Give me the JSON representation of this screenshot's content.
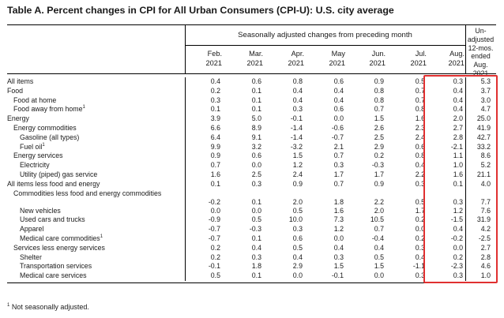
{
  "title": "Table A. Percent changes in CPI for All Urban Consumers (CPI-U): U.S. city average",
  "header": {
    "group_label": "Seasonally adjusted changes from preceding month",
    "months": [
      {
        "m": "Feb.",
        "y": "2021"
      },
      {
        "m": "Mar.",
        "y": "2021"
      },
      {
        "m": "Apr.",
        "y": "2021"
      },
      {
        "m": "May",
        "y": "2021"
      },
      {
        "m": "Jun.",
        "y": "2021"
      },
      {
        "m": "Jul.",
        "y": "2021"
      },
      {
        "m": "Aug.",
        "y": "2021"
      }
    ],
    "unadjusted_lines": [
      "Un-",
      "adjusted",
      "12-mos.",
      "ended",
      "Aug. 2021"
    ]
  },
  "rows": [
    {
      "label": "All items",
      "sup": "",
      "indent": 0,
      "values": [
        "0.4",
        "0.6",
        "0.8",
        "0.6",
        "0.9",
        "0.5",
        "0.3",
        "5.3"
      ]
    },
    {
      "label": "Food",
      "sup": "",
      "indent": 0,
      "values": [
        "0.2",
        "0.1",
        "0.4",
        "0.4",
        "0.8",
        "0.7",
        "0.4",
        "3.7"
      ]
    },
    {
      "label": "Food at home",
      "sup": "",
      "indent": 1,
      "values": [
        "0.3",
        "0.1",
        "0.4",
        "0.4",
        "0.8",
        "0.7",
        "0.4",
        "3.0"
      ]
    },
    {
      "label": "Food away from home",
      "sup": "1",
      "indent": 1,
      "values": [
        "0.1",
        "0.1",
        "0.3",
        "0.6",
        "0.7",
        "0.8",
        "0.4",
        "4.7"
      ]
    },
    {
      "label": "Energy",
      "sup": "",
      "indent": 0,
      "values": [
        "3.9",
        "5.0",
        "-0.1",
        "0.0",
        "1.5",
        "1.6",
        "2.0",
        "25.0"
      ]
    },
    {
      "label": "Energy commodities",
      "sup": "",
      "indent": 1,
      "values": [
        "6.6",
        "8.9",
        "-1.4",
        "-0.6",
        "2.6",
        "2.3",
        "2.7",
        "41.9"
      ]
    },
    {
      "label": "Gasoline (all types)",
      "sup": "",
      "indent": 2,
      "values": [
        "6.4",
        "9.1",
        "-1.4",
        "-0.7",
        "2.5",
        "2.4",
        "2.8",
        "42.7"
      ]
    },
    {
      "label": "Fuel oil",
      "sup": "1",
      "indent": 2,
      "values": [
        "9.9",
        "3.2",
        "-3.2",
        "2.1",
        "2.9",
        "0.6",
        "-2.1",
        "33.2"
      ]
    },
    {
      "label": "Energy services",
      "sup": "",
      "indent": 1,
      "values": [
        "0.9",
        "0.6",
        "1.5",
        "0.7",
        "0.2",
        "0.8",
        "1.1",
        "8.6"
      ]
    },
    {
      "label": "Electricity",
      "sup": "",
      "indent": 2,
      "values": [
        "0.7",
        "0.0",
        "1.2",
        "0.3",
        "-0.3",
        "0.4",
        "1.0",
        "5.2"
      ]
    },
    {
      "label": "Utility (piped) gas service",
      "sup": "",
      "indent": 2,
      "values": [
        "1.6",
        "2.5",
        "2.4",
        "1.7",
        "1.7",
        "2.2",
        "1.6",
        "21.1"
      ]
    },
    {
      "label": "All items less food and energy",
      "sup": "",
      "indent": 0,
      "values": [
        "0.1",
        "0.3",
        "0.9",
        "0.7",
        "0.9",
        "0.3",
        "0.1",
        "4.0"
      ]
    },
    {
      "label": "Commodities less food and energy commodities",
      "sup": "",
      "indent": 1,
      "tall": true,
      "values": [
        "-0.2",
        "0.1",
        "2.0",
        "1.8",
        "2.2",
        "0.5",
        "0.3",
        "7.7"
      ]
    },
    {
      "label": "New vehicles",
      "sup": "",
      "indent": 2,
      "values": [
        "0.0",
        "0.0",
        "0.5",
        "1.6",
        "2.0",
        "1.7",
        "1.2",
        "7.6"
      ]
    },
    {
      "label": "Used cars and trucks",
      "sup": "",
      "indent": 2,
      "values": [
        "-0.9",
        "0.5",
        "10.0",
        "7.3",
        "10.5",
        "0.2",
        "-1.5",
        "31.9"
      ]
    },
    {
      "label": "Apparel",
      "sup": "",
      "indent": 2,
      "values": [
        "-0.7",
        "-0.3",
        "0.3",
        "1.2",
        "0.7",
        "0.0",
        "0.4",
        "4.2"
      ]
    },
    {
      "label": "Medical care commodities",
      "sup": "1",
      "indent": 2,
      "values": [
        "-0.7",
        "0.1",
        "0.6",
        "0.0",
        "-0.4",
        "0.2",
        "-0.2",
        "-2.5"
      ]
    },
    {
      "label": "Services less energy services",
      "sup": "",
      "indent": 1,
      "values": [
        "0.2",
        "0.4",
        "0.5",
        "0.4",
        "0.4",
        "0.3",
        "0.0",
        "2.7"
      ]
    },
    {
      "label": "Shelter",
      "sup": "",
      "indent": 2,
      "values": [
        "0.2",
        "0.3",
        "0.4",
        "0.3",
        "0.5",
        "0.4",
        "0.2",
        "2.8"
      ]
    },
    {
      "label": "Transportation services",
      "sup": "",
      "indent": 2,
      "values": [
        "-0.1",
        "1.8",
        "2.9",
        "1.5",
        "1.5",
        "-1.1",
        "-2.3",
        "4.6"
      ]
    },
    {
      "label": "Medical care services",
      "sup": "",
      "indent": 2,
      "values": [
        "0.5",
        "0.1",
        "0.0",
        "-0.1",
        "0.0",
        "0.3",
        "0.3",
        "1.0"
      ]
    }
  ],
  "footnote": {
    "sup": "1",
    "text": "Not seasonally adjusted."
  },
  "colors": {
    "highlight_box": "#e03030",
    "rule": "#000000"
  }
}
